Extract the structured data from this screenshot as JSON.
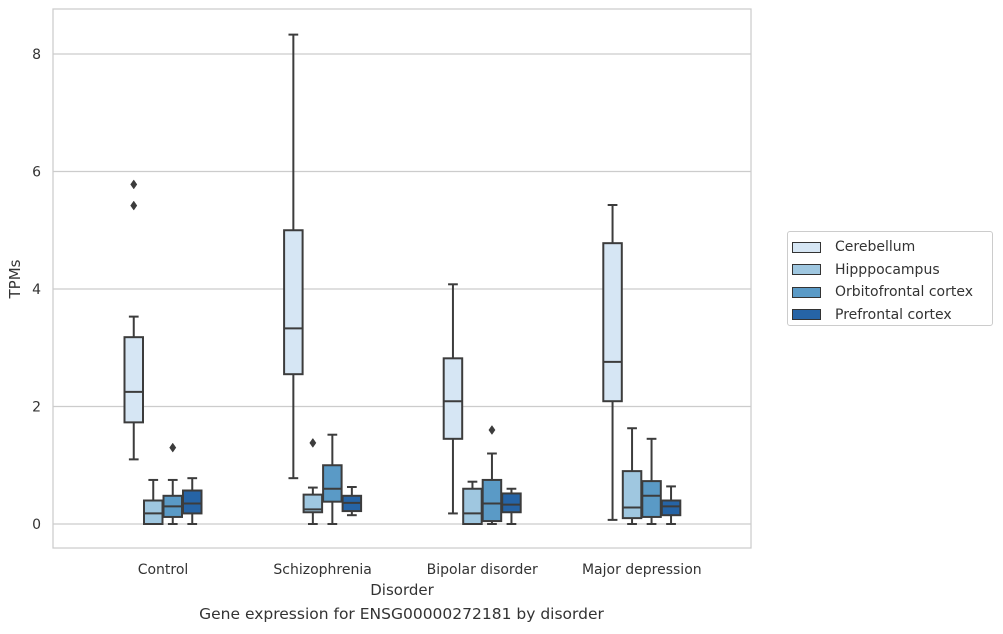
{
  "caption": "Gene expression for ENSG00000272181 by disorder",
  "chart_data": {
    "type": "box",
    "title": "",
    "xlabel": "Disorder",
    "ylabel": "TPMs",
    "ylim": [
      -0.4,
      8.8
    ],
    "yticks": [
      0,
      2,
      4,
      6,
      8
    ],
    "grid": "horizontal",
    "legend_position": "right",
    "categories": [
      "Control",
      "Schizophrenia",
      "Bipolar disorder",
      "Major depression"
    ],
    "series": [
      {
        "name": "Cerebellum",
        "color": "#d6e6f4",
        "boxes": [
          {
            "whislo": 1.1,
            "q1": 1.73,
            "med": 2.25,
            "q3": 3.18,
            "whishi": 3.53,
            "fliers": [
              5.42,
              5.78
            ]
          },
          {
            "whislo": 0.78,
            "q1": 2.55,
            "med": 3.33,
            "q3": 5.0,
            "whishi": 8.33,
            "fliers": []
          },
          {
            "whislo": 0.18,
            "q1": 1.45,
            "med": 2.09,
            "q3": 2.82,
            "whishi": 4.08,
            "fliers": []
          },
          {
            "whislo": 0.07,
            "q1": 2.09,
            "med": 2.76,
            "q3": 4.78,
            "whishi": 5.43,
            "fliers": []
          }
        ]
      },
      {
        "name": "Hipppocampus",
        "color": "#9fc7e0",
        "boxes": [
          {
            "whislo": 0.0,
            "q1": 0.0,
            "med": 0.18,
            "q3": 0.4,
            "whishi": 0.75,
            "fliers": []
          },
          {
            "whislo": 0.0,
            "q1": 0.2,
            "med": 0.25,
            "q3": 0.5,
            "whishi": 0.62,
            "fliers": [
              1.38
            ]
          },
          {
            "whislo": 0.0,
            "q1": 0.0,
            "med": 0.18,
            "q3": 0.6,
            "whishi": 0.72,
            "fliers": []
          },
          {
            "whislo": 0.0,
            "q1": 0.1,
            "med": 0.28,
            "q3": 0.9,
            "whishi": 1.63,
            "fliers": []
          }
        ]
      },
      {
        "name": "Orbitofrontal cortex",
        "color": "#5a9ac6",
        "boxes": [
          {
            "whislo": 0.0,
            "q1": 0.12,
            "med": 0.3,
            "q3": 0.48,
            "whishi": 0.75,
            "fliers": [
              1.3
            ]
          },
          {
            "whislo": 0.0,
            "q1": 0.38,
            "med": 0.6,
            "q3": 1.0,
            "whishi": 1.52,
            "fliers": []
          },
          {
            "whislo": 0.0,
            "q1": 0.05,
            "med": 0.35,
            "q3": 0.75,
            "whishi": 1.2,
            "fliers": [
              1.6
            ]
          },
          {
            "whislo": 0.0,
            "q1": 0.12,
            "med": 0.48,
            "q3": 0.73,
            "whishi": 1.45,
            "fliers": []
          }
        ]
      },
      {
        "name": "Prefrontal cortex",
        "color": "#2664a6",
        "boxes": [
          {
            "whislo": 0.0,
            "q1": 0.18,
            "med": 0.35,
            "q3": 0.57,
            "whishi": 0.78,
            "fliers": []
          },
          {
            "whislo": 0.15,
            "q1": 0.22,
            "med": 0.36,
            "q3": 0.48,
            "whishi": 0.63,
            "fliers": []
          },
          {
            "whislo": 0.0,
            "q1": 0.2,
            "med": 0.33,
            "q3": 0.52,
            "whishi": 0.6,
            "fliers": []
          },
          {
            "whislo": 0.0,
            "q1": 0.15,
            "med": 0.3,
            "q3": 0.4,
            "whishi": 0.64,
            "fliers": []
          }
        ]
      }
    ]
  }
}
